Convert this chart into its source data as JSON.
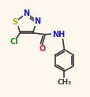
{
  "background_color": "#fdf8ee",
  "bond_color": "#3a3a3a",
  "atom_colors": {
    "C": "#3a3a3a",
    "N": "#1a1acc",
    "S": "#bbaa00",
    "O": "#cc2222",
    "Cl": "#228822",
    "H": "#3a3a3a"
  },
  "figsize": [
    1.15,
    1.23
  ],
  "dpi": 100,
  "lw": 1.2,
  "fs": 7.0
}
